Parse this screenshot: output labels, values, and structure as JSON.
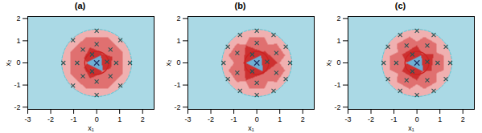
{
  "chart_data": [
    {
      "type": "decision_regions",
      "title": "(a)",
      "xlabel": "x₁",
      "ylabel": "x₂",
      "xlim": [
        -3.0,
        2.5
      ],
      "ylim": [
        -2.1,
        2.1
      ],
      "xticks": [
        -3,
        -2,
        -1,
        0,
        1,
        2
      ],
      "yticks": [
        -2,
        -1,
        0,
        1,
        2
      ],
      "grid": false,
      "background_color": "#aad9e5",
      "circles": [
        {
          "radius": 0.52,
          "color": "#cc2222",
          "line_style": "solid"
        },
        {
          "radius": 1.52,
          "color": "#44ccdd",
          "line_style": "dashed"
        }
      ],
      "series": [
        {
          "x": [
            0.0
          ],
          "y": [
            0.0
          ],
          "color": "#223366",
          "region_color": "#6eafd4",
          "marker": "x"
        },
        {
          "x": [
            0.45,
            -0.2,
            -0.2
          ],
          "y": [
            0.05,
            0.38,
            -0.38
          ],
          "color": "#2a5555",
          "region_color": "#cd3030",
          "marker": "x"
        },
        {
          "x": [
            0.85,
            0.6,
            0.0,
            -0.6,
            -0.85,
            -0.6,
            0.0,
            0.6
          ],
          "y": [
            0.0,
            0.6,
            0.85,
            0.6,
            0.0,
            -0.6,
            -0.85,
            -0.6
          ],
          "color": "#2a5555",
          "region_color": "#e07070",
          "marker": "x"
        },
        {
          "x": [
            1.45,
            1.03,
            0.0,
            -1.03,
            -1.45,
            -1.03,
            0.0,
            1.03
          ],
          "y": [
            0.0,
            1.03,
            1.45,
            1.03,
            0.0,
            -1.03,
            -1.45,
            -1.03
          ],
          "color": "#2a5555",
          "region_color": "#f0b0b0",
          "marker": "x"
        }
      ]
    },
    {
      "type": "decision_regions",
      "title": "(b)",
      "xlabel": "x₁",
      "ylabel": "x₂",
      "xlim": [
        -3.0,
        2.5
      ],
      "ylim": [
        -2.1,
        2.1
      ],
      "xticks": [
        -3,
        -2,
        -1,
        0,
        1,
        2
      ],
      "yticks": [
        -2,
        -1,
        0,
        1,
        2
      ],
      "grid": false,
      "background_color": "#aad9e5",
      "circles": [
        {
          "radius": 0.52,
          "color": "#cc2222",
          "line_style": "solid"
        },
        {
          "radius": 1.52,
          "color": "#44ccdd",
          "line_style": "dashed"
        }
      ],
      "series": [
        {
          "x": [
            0.0
          ],
          "y": [
            0.0
          ],
          "color": "#223366",
          "region_color": "#6eafd4",
          "marker": "x"
        },
        {
          "x": [
            0.45,
            -0.2,
            -0.2
          ],
          "y": [
            0.05,
            0.38,
            -0.38
          ],
          "color": "#2a5555",
          "region_color": "#cd3030",
          "marker": "x"
        },
        {
          "x": [
            0.85,
            0.0,
            -0.85,
            -0.85,
            0.0,
            0.85
          ],
          "y": [
            0.45,
            0.9,
            0.45,
            -0.45,
            -0.9,
            -0.45
          ],
          "color": "#2a5555",
          "region_color": "#e07070",
          "marker": "x"
        },
        {
          "x": [
            1.45,
            1.26,
            0.73,
            0.0,
            -0.73,
            -1.26,
            -1.45,
            -1.26,
            -0.73,
            0.0,
            0.73,
            1.26
          ],
          "y": [
            0.0,
            0.73,
            1.26,
            1.45,
            1.26,
            0.73,
            0.0,
            -0.73,
            -1.26,
            -1.45,
            -1.26,
            -0.73
          ],
          "color": "#2a5555",
          "region_color": "#f0b0b0",
          "marker": "x"
        }
      ]
    },
    {
      "type": "decision_regions",
      "title": "(c)",
      "xlabel": "x₁",
      "ylabel": "x₂",
      "xlim": [
        -3.0,
        2.5
      ],
      "ylim": [
        -2.1,
        2.1
      ],
      "xticks": [
        -3,
        -2,
        -1,
        0,
        1,
        2
      ],
      "yticks": [
        -2,
        -1,
        0,
        1,
        2
      ],
      "grid": false,
      "background_color": "#aad9e5",
      "circles": [
        {
          "radius": 0.52,
          "color": "#cc2222",
          "line_style": "solid"
        },
        {
          "radius": 1.52,
          "color": "#44ccdd",
          "line_style": "dashed"
        }
      ],
      "series": [
        {
          "x": [
            0.0
          ],
          "y": [
            0.0
          ],
          "color": "#223366",
          "region_color": "#6eafd4",
          "marker": "x"
        },
        {
          "x": [
            0.45,
            -0.2,
            -0.2
          ],
          "y": [
            0.05,
            0.38,
            -0.38
          ],
          "color": "#2a5555",
          "region_color": "#cd3030",
          "marker": "x"
        },
        {
          "x": [
            0.9,
            0.45,
            -0.45,
            -0.9,
            -0.45,
            0.45
          ],
          "y": [
            0.0,
            0.78,
            0.78,
            0.0,
            -0.78,
            -0.78
          ],
          "color": "#2a5555",
          "region_color": "#e07070",
          "marker": "x"
        },
        {
          "x": [
            1.45,
            1.26,
            0.73,
            0.0,
            -0.73,
            -1.26,
            -1.45,
            -1.26,
            -0.73,
            0.0,
            0.73,
            1.26
          ],
          "y": [
            0.0,
            0.73,
            1.26,
            1.45,
            1.26,
            0.73,
            0.0,
            -0.73,
            -1.26,
            -1.45,
            -1.26,
            -0.73
          ],
          "color": "#2a5555",
          "region_color": "#f0b0b0",
          "marker": "x"
        }
      ]
    }
  ]
}
